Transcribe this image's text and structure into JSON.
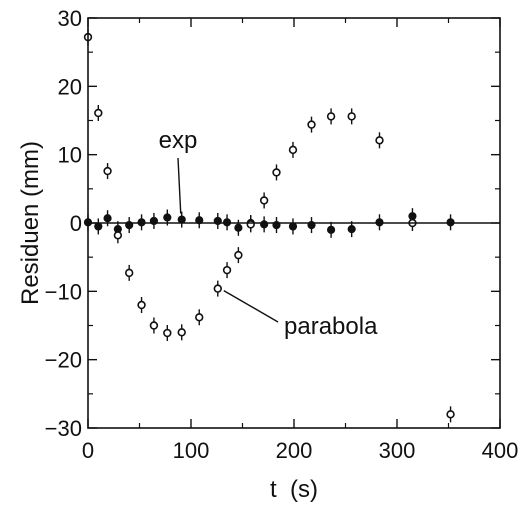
{
  "chart_data": {
    "type": "scatter",
    "title": "",
    "xlabel": "t  (s)",
    "ylabel": "Residuen (mm)",
    "xlim": [
      0,
      400
    ],
    "ylim": [
      -30,
      30
    ],
    "xticks": [
      0,
      100,
      200,
      300,
      400
    ],
    "yticks": [
      -30,
      -20,
      -10,
      0,
      10,
      20,
      30
    ],
    "xtick_labels": [
      "0",
      "100",
      "200",
      "300",
      "400"
    ],
    "ytick_labels": [
      "−30",
      "−20",
      "−10",
      "0",
      "10",
      "20",
      "30"
    ],
    "grid": false,
    "zero_line": true,
    "series": [
      {
        "name": "exp",
        "marker": "filled-circle",
        "x": [
          0,
          10,
          19,
          29,
          40,
          52,
          64,
          77,
          91,
          108,
          126,
          135,
          146,
          158,
          171,
          183,
          199,
          217,
          236,
          256,
          283,
          315,
          352
        ],
        "y": [
          0.1,
          -0.5,
          0.7,
          -0.9,
          -0.3,
          0.1,
          0.3,
          0.8,
          0.5,
          0.4,
          0.3,
          0.1,
          -0.7,
          0.0,
          -0.2,
          -0.3,
          -0.5,
          -0.3,
          -1.0,
          -0.9,
          0.1,
          1.0,
          0.1
        ]
      },
      {
        "name": "parabola",
        "marker": "open-circle",
        "x": [
          0,
          10,
          19,
          29,
          40,
          52,
          64,
          77,
          91,
          108,
          126,
          135,
          146,
          158,
          171,
          183,
          199,
          217,
          236,
          256,
          283,
          315,
          352
        ],
        "y": [
          27.2,
          16.1,
          7.6,
          -1.8,
          -7.3,
          -12.0,
          -15.0,
          -16.1,
          -16.0,
          -13.8,
          -9.6,
          -6.9,
          -4.7,
          -0.2,
          3.3,
          7.4,
          10.7,
          14.4,
          15.6,
          15.6,
          12.1,
          0.0,
          -28.0
        ]
      }
    ],
    "annotations": [
      {
        "text": "exp",
        "target": {
          "x": 91,
          "y": 0.5
        }
      },
      {
        "text": "parabola",
        "target": {
          "x": 126,
          "y": -9.6
        }
      }
    ]
  }
}
